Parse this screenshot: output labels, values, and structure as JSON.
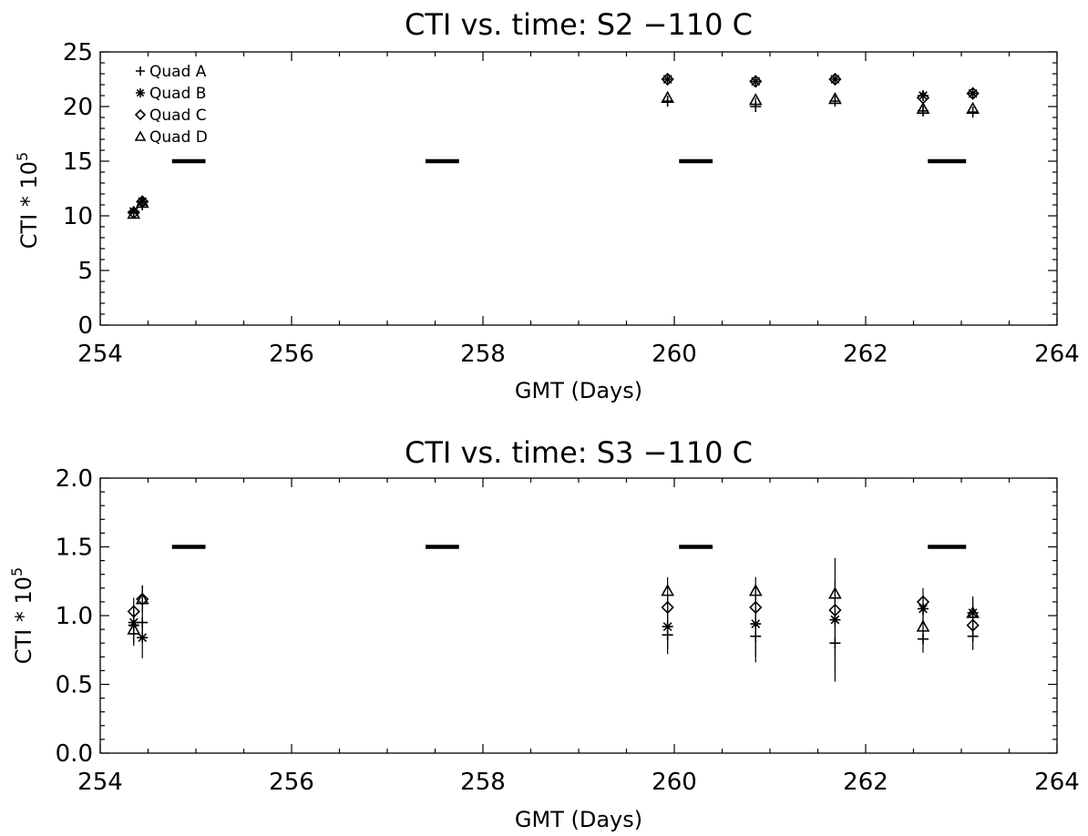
{
  "chart_data": [
    {
      "type": "scatter",
      "title": "CTI vs. time: S2 −110 C",
      "xlabel": "GMT (Days)",
      "ylabel": "CTI * 10",
      "ylabel_exp": "5",
      "xlim": [
        254,
        264
      ],
      "ylim": [
        0,
        25
      ],
      "xticks": [
        254,
        256,
        258,
        260,
        262,
        264
      ],
      "yticks": [
        0,
        5,
        10,
        15,
        20,
        25
      ],
      "ytick_labels": [
        "0",
        "5",
        "10",
        "15",
        "20",
        "25"
      ],
      "legend": {
        "position": "top-left",
        "entries": [
          {
            "name": "Quad A",
            "marker": "plus"
          },
          {
            "name": "Quad B",
            "marker": "asterisk"
          },
          {
            "name": "Quad C",
            "marker": "diamond"
          },
          {
            "name": "Quad D",
            "marker": "triangle"
          }
        ]
      },
      "series": [
        {
          "name": "Quad A",
          "marker": "plus",
          "x": [
            254.35,
            254.44,
            259.93,
            260.85,
            261.68,
            262.6,
            263.12
          ],
          "y": [
            10.3,
            11.0,
            20.5,
            20.0,
            20.5,
            19.6,
            19.5
          ],
          "err": [
            0.2,
            0.2,
            0.5,
            0.5,
            0.4,
            0.5,
            0.5
          ]
        },
        {
          "name": "Quad B",
          "marker": "asterisk",
          "x": [
            254.35,
            254.44,
            259.93,
            260.85,
            261.68,
            262.6,
            263.12
          ],
          "y": [
            10.4,
            11.3,
            22.5,
            22.3,
            22.5,
            21.0,
            21.2
          ],
          "err": [
            0.2,
            0.2,
            0.2,
            0.2,
            0.2,
            0.2,
            0.2
          ]
        },
        {
          "name": "Quad C",
          "marker": "diamond",
          "x": [
            254.35,
            254.44,
            259.93,
            260.85,
            261.68,
            262.6,
            263.12
          ],
          "y": [
            10.3,
            11.3,
            22.5,
            22.3,
            22.5,
            20.8,
            21.2
          ],
          "err": [
            0.2,
            0.2,
            0.2,
            0.2,
            0.2,
            0.2,
            0.2
          ]
        },
        {
          "name": "Quad D",
          "marker": "triangle",
          "x": [
            254.35,
            254.44,
            259.93,
            260.85,
            261.68,
            262.6,
            263.12
          ],
          "y": [
            10.2,
            11.2,
            20.8,
            20.6,
            20.7,
            19.8,
            19.8
          ],
          "err": [
            0.2,
            0.2,
            0.2,
            0.2,
            0.2,
            0.2,
            0.2
          ]
        }
      ],
      "bars": [
        {
          "x": [
            254.75,
            255.1
          ],
          "y": 15
        },
        {
          "x": [
            257.4,
            257.75
          ],
          "y": 15
        },
        {
          "x": [
            260.05,
            260.4
          ],
          "y": 15
        },
        {
          "x": [
            262.65,
            263.05
          ],
          "y": 15
        }
      ]
    },
    {
      "type": "scatter",
      "title": "CTI vs. time: S3 −110 C",
      "xlabel": "GMT (Days)",
      "ylabel": "CTI * 10",
      "ylabel_exp": "5",
      "xlim": [
        254,
        264
      ],
      "ylim": [
        0,
        2
      ],
      "xticks": [
        254,
        256,
        258,
        260,
        262,
        264
      ],
      "yticks": [
        0,
        0.5,
        1.0,
        1.5,
        2.0
      ],
      "ytick_labels": [
        "0.0",
        "0.5",
        "1.0",
        "1.5",
        "2.0"
      ],
      "series": [
        {
          "name": "Quad A",
          "marker": "plus",
          "x": [
            254.35,
            254.44,
            259.93,
            260.85,
            261.68,
            262.6,
            263.12
          ],
          "y": [
            0.93,
            0.95,
            0.86,
            0.85,
            0.8,
            0.83,
            0.85
          ],
          "err": [
            0.15,
            0.15,
            0.1,
            0.15,
            0.2,
            0.1,
            0.1
          ]
        },
        {
          "name": "Quad B",
          "marker": "asterisk",
          "x": [
            254.35,
            254.44,
            259.93,
            260.85,
            261.68,
            262.6,
            263.12
          ],
          "y": [
            0.95,
            0.84,
            0.92,
            0.94,
            0.97,
            1.05,
            1.02
          ],
          "err": [
            0.1,
            0.15,
            0.2,
            0.28,
            0.45,
            0.1,
            0.12
          ]
        },
        {
          "name": "Quad C",
          "marker": "diamond",
          "x": [
            254.35,
            254.44,
            259.93,
            260.85,
            261.68,
            262.6,
            263.12
          ],
          "y": [
            1.03,
            1.12,
            1.06,
            1.06,
            1.04,
            1.1,
            0.93
          ],
          "err": [
            0.1,
            0.1,
            0.1,
            0.1,
            0.1,
            0.1,
            0.1
          ]
        },
        {
          "name": "Quad D",
          "marker": "triangle",
          "x": [
            254.35,
            254.44,
            259.93,
            260.85,
            261.68,
            262.6,
            263.12
          ],
          "y": [
            0.9,
            1.12,
            1.18,
            1.18,
            1.16,
            0.92,
            1.02
          ],
          "err": [
            0.1,
            0.1,
            0.1,
            0.1,
            0.1,
            0.1,
            0.1
          ]
        }
      ],
      "bars": [
        {
          "x": [
            254.75,
            255.1
          ],
          "y": 1.5
        },
        {
          "x": [
            257.4,
            257.75
          ],
          "y": 1.5
        },
        {
          "x": [
            260.05,
            260.4
          ],
          "y": 1.5
        },
        {
          "x": [
            262.65,
            263.05
          ],
          "y": 1.5
        }
      ]
    }
  ]
}
